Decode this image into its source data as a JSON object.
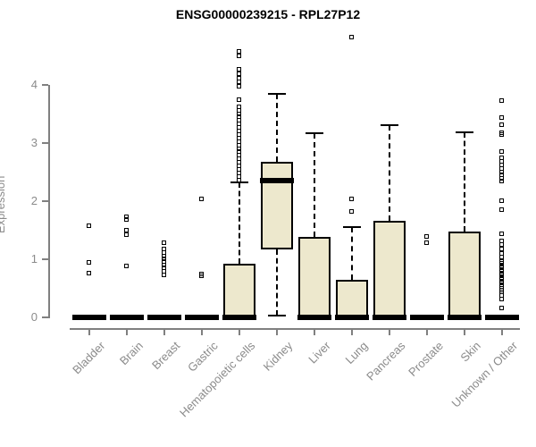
{
  "page": {
    "background_color": "#ffffff"
  },
  "chart_data": {
    "type": "boxplot",
    "title": "ENSG00000239215 - RPL27P12",
    "ylabel": "Expression",
    "xlabel": "",
    "yticks": [
      0,
      1,
      2,
      3,
      4
    ],
    "ylim": [
      0,
      4.9
    ],
    "grid": false,
    "legend_position": "none",
    "style": {
      "box_fill": "#EDE8CD",
      "box_border": "#000000",
      "median_color": "#000000",
      "whisker_line": "dashed-black",
      "outlier_marker": "open-square",
      "axis_color": "#808080",
      "tick_label_color": "#8B8B8B",
      "title_color": "#000000"
    },
    "categories": [
      "Bladder",
      "Brain",
      "Breast",
      "Gastric",
      "Hematopoietic cells",
      "Kidney",
      "Liver",
      "Lung",
      "Pancreas",
      "Prostate",
      "Skin",
      "Unknown / Other"
    ],
    "boxes": [
      {
        "category": "Bladder",
        "whisker_low": 0,
        "q1": 0,
        "median": 0,
        "q3": 0,
        "whisker_high": 0,
        "outliers": [
          1.57,
          0.94,
          0.76
        ]
      },
      {
        "category": "Brain",
        "whisker_low": 0,
        "q1": 0,
        "median": 0,
        "q3": 0,
        "whisker_high": 0,
        "outliers": [
          1.72,
          1.67,
          1.5,
          1.42,
          0.88
        ]
      },
      {
        "category": "Breast",
        "whisker_low": 0,
        "q1": 0,
        "median": 0,
        "q3": 0,
        "whisker_high": 0,
        "outliers": [
          1.28,
          1.17,
          1.11,
          1.05,
          1.0,
          0.95,
          0.9,
          0.85,
          0.78,
          0.72
        ]
      },
      {
        "category": "Gastric",
        "whisker_low": 0,
        "q1": 0,
        "median": 0,
        "q3": 0,
        "whisker_high": 0,
        "outliers": [
          2.03,
          0.74,
          0.71
        ]
      },
      {
        "category": "Hematopoietic cells",
        "whisker_low": 0,
        "q1": 0,
        "median": 0,
        "q3": 0.92,
        "whisker_high": 2.33,
        "outliers": [
          4.57,
          4.5,
          4.26,
          4.18,
          4.11,
          4.04,
          3.97,
          3.74,
          3.62,
          3.56,
          3.5,
          3.44,
          3.38,
          3.32,
          3.26,
          3.2,
          3.14,
          3.08,
          3.02,
          2.96,
          2.9,
          2.84,
          2.78,
          2.72,
          2.66,
          2.6,
          2.54,
          2.48,
          2.42,
          2.36
        ]
      },
      {
        "category": "Kidney",
        "whisker_low": 0.03,
        "q1": 1.17,
        "median": 2.35,
        "q3": 2.67,
        "whisker_high": 3.85,
        "outliers": []
      },
      {
        "category": "Liver",
        "whisker_low": 0,
        "q1": 0,
        "median": 0,
        "q3": 1.38,
        "whisker_high": 3.17,
        "outliers": []
      },
      {
        "category": "Lung",
        "whisker_low": 0,
        "q1": 0,
        "median": 0,
        "q3": 0.64,
        "whisker_high": 1.55,
        "outliers": [
          4.82,
          2.03,
          1.82
        ]
      },
      {
        "category": "Pancreas",
        "whisker_low": 0,
        "q1": 0,
        "median": 0,
        "q3": 1.66,
        "whisker_high": 3.31,
        "outliers": []
      },
      {
        "category": "Prostate",
        "whisker_low": 0,
        "q1": 0,
        "median": 0,
        "q3": 0,
        "whisker_high": 0,
        "outliers": [
          1.39,
          1.27
        ]
      },
      {
        "category": "Skin",
        "whisker_low": 0,
        "q1": 0,
        "median": 0,
        "q3": 1.48,
        "whisker_high": 3.18,
        "outliers": []
      },
      {
        "category": "Unknown / Other",
        "whisker_low": 0,
        "q1": 0,
        "median": 0,
        "q3": 0,
        "whisker_high": 0,
        "outliers": [
          3.72,
          3.43,
          3.31,
          3.17,
          3.14,
          2.85,
          2.74,
          2.68,
          2.62,
          2.56,
          2.5,
          2.44,
          2.38,
          2.34,
          2.0,
          1.85,
          1.43,
          1.31,
          1.24,
          1.17,
          1.1,
          1.03,
          0.96,
          0.92,
          0.88,
          0.84,
          0.8,
          0.76,
          0.72,
          0.68,
          0.64,
          0.6,
          0.56,
          0.52,
          0.46,
          0.43,
          0.37,
          0.31,
          0.15
        ]
      }
    ]
  }
}
